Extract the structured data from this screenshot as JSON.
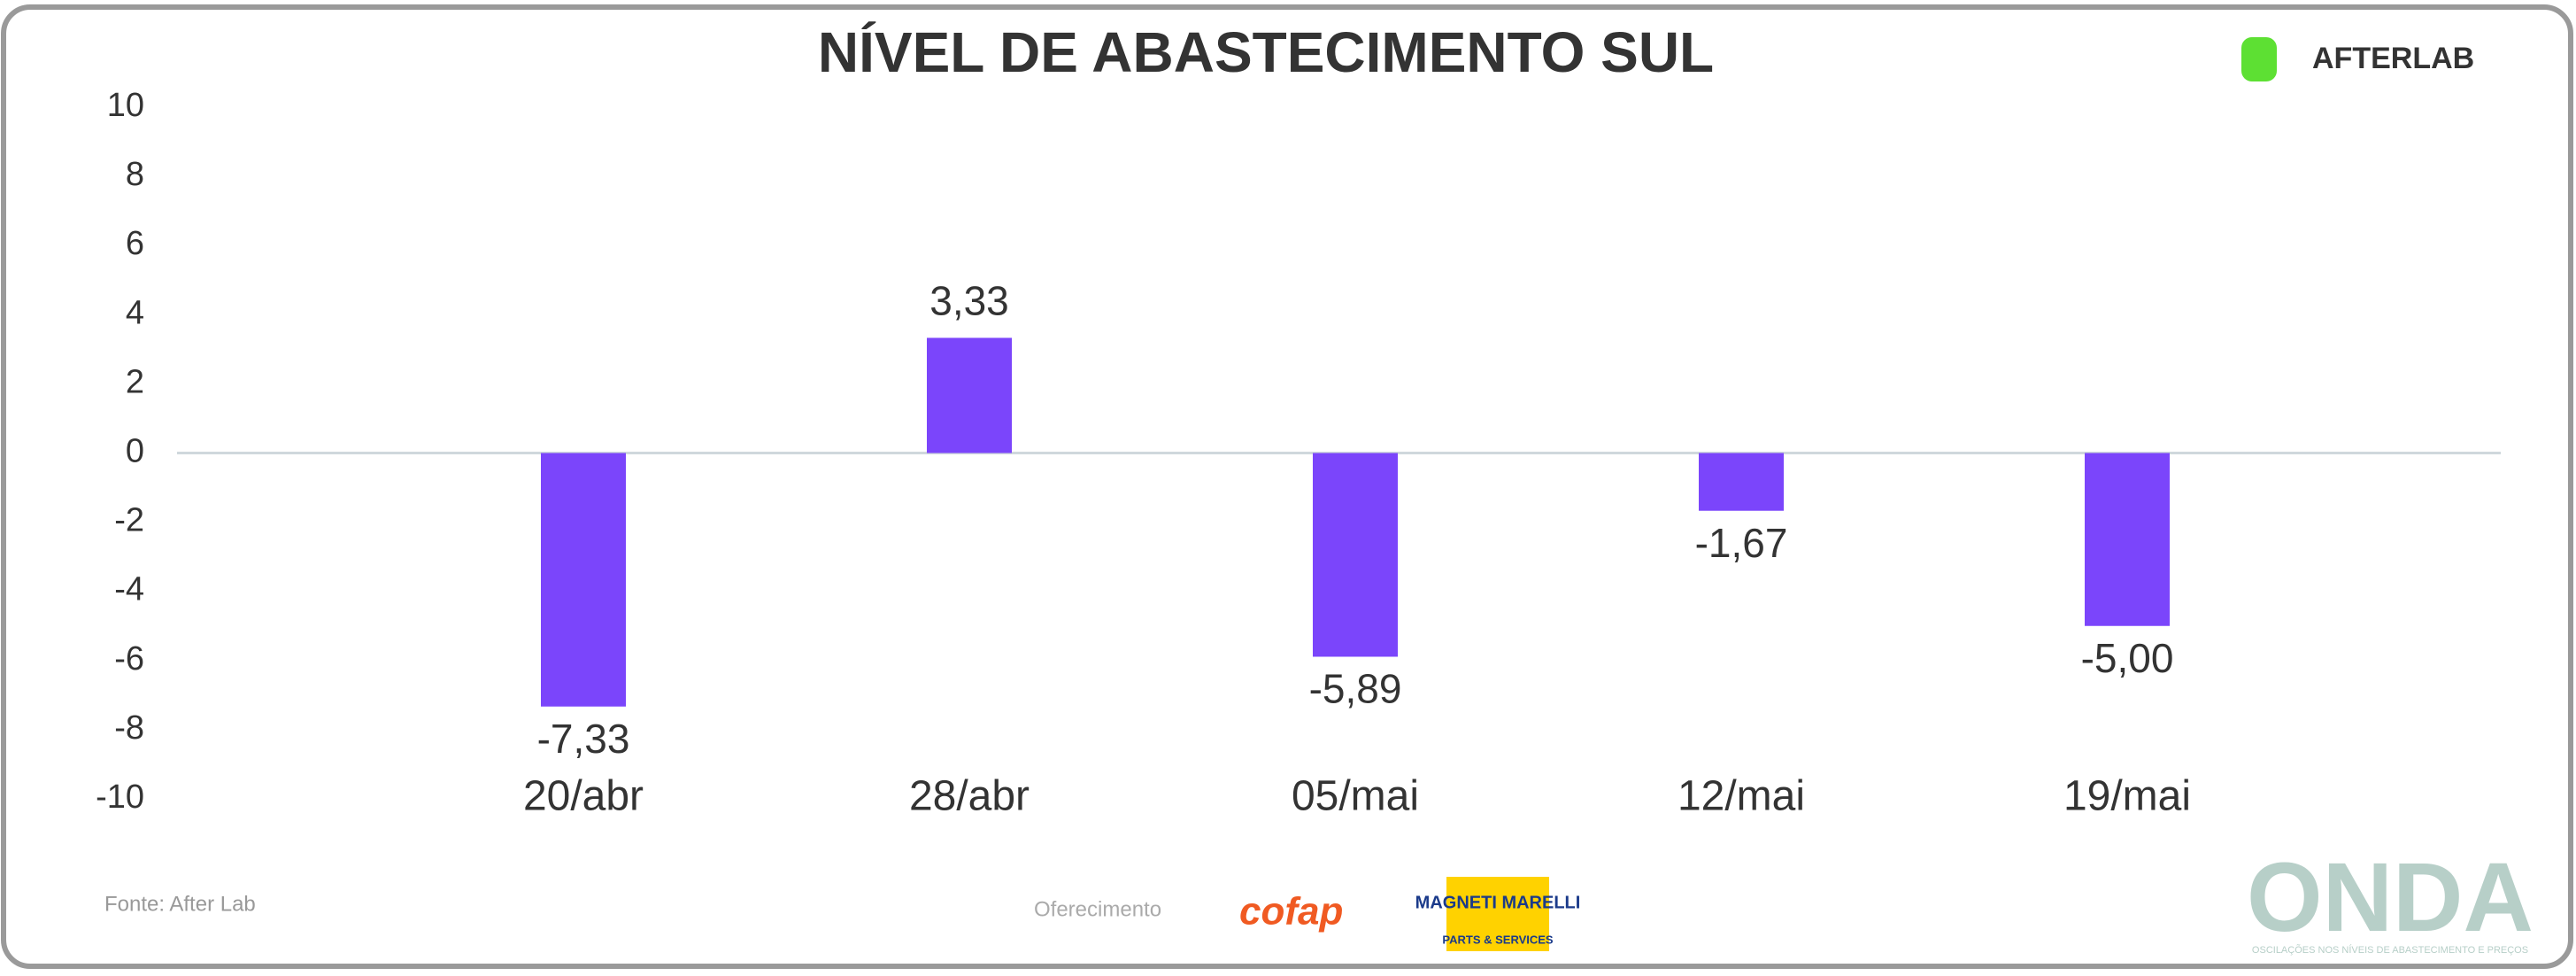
{
  "chart_data": {
    "type": "bar",
    "title": "NÍVEL DE ABASTECIMENTO SUL",
    "categories": [
      "20/abr",
      "28/abr",
      "05/mai",
      "12/mai",
      "19/mai"
    ],
    "values": [
      -7.33,
      3.33,
      -5.89,
      -1.67,
      -5.0
    ],
    "value_labels": [
      "-7,33",
      "3,33",
      "-5,89",
      "-1,67",
      "-5,00"
    ],
    "color": "#7b45fb",
    "ylim": [
      -10,
      10
    ],
    "yticks": [
      -10,
      -8,
      -6,
      -4,
      -2,
      0,
      2,
      4,
      6,
      8,
      10
    ]
  },
  "branding": {
    "logo": "AFTERLAB",
    "source": "Fonte: After Lab",
    "sponsor_label": "Oferecimento",
    "sponsors": [
      "cofap",
      "MAGNETI MARELLI",
      "PARTS & SERVICES"
    ],
    "brand": "ONDA",
    "brand_tagline": "OSCILAÇÕES NOS NÍVEIS DE ABASTECIMENTO E PREÇOS"
  }
}
